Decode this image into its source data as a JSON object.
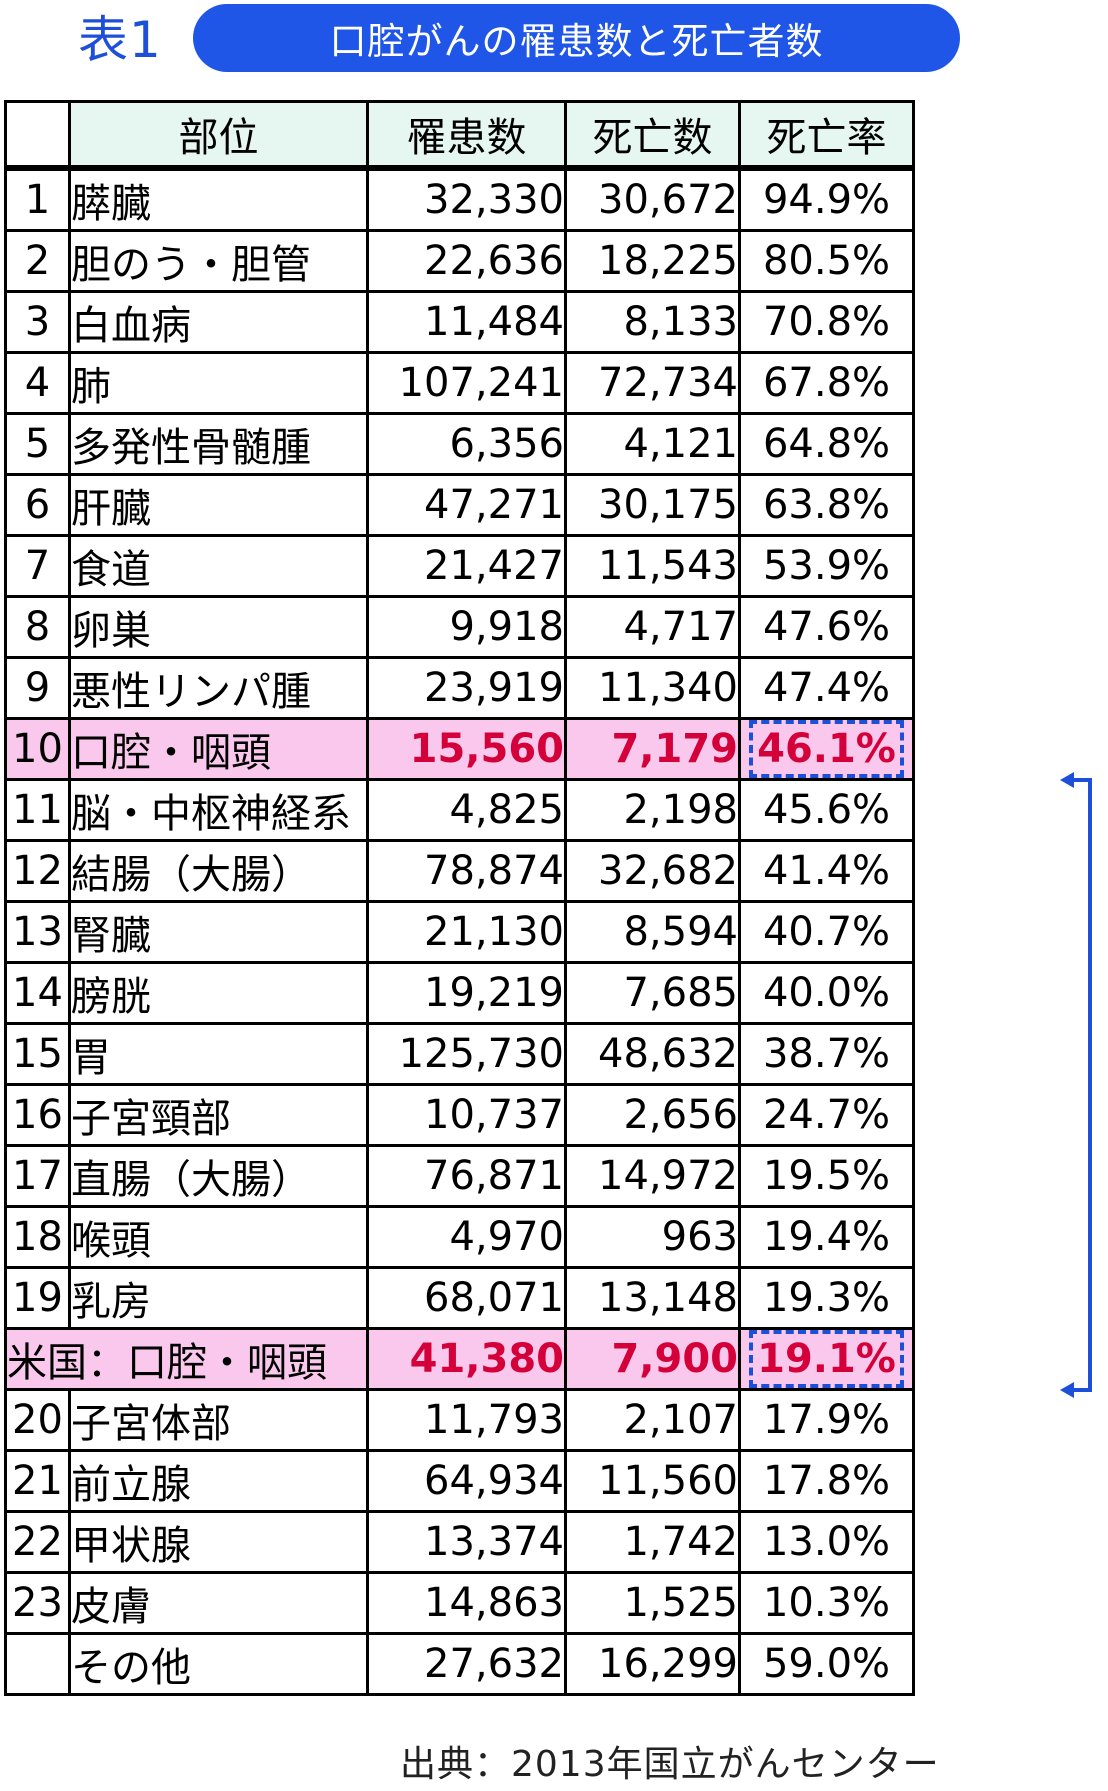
{
  "header": {
    "table_label": "表1",
    "title": "口腔がんの罹患数と死亡者数"
  },
  "columns": {
    "rank": "",
    "site": "部位",
    "incidence": "罹患数",
    "deaths": "死亡数",
    "mortality_rate": "死亡率"
  },
  "rows": [
    {
      "rank": "1",
      "site": "膵臓",
      "incidence": "32,330",
      "deaths": "30,672",
      "rate": "94.9%"
    },
    {
      "rank": "2",
      "site": "胆のう・胆管",
      "incidence": "22,636",
      "deaths": "18,225",
      "rate": "80.5%"
    },
    {
      "rank": "3",
      "site": "白血病",
      "incidence": "11,484",
      "deaths": "8,133",
      "rate": "70.8%"
    },
    {
      "rank": "4",
      "site": "肺",
      "incidence": "107,241",
      "deaths": "72,734",
      "rate": "67.8%"
    },
    {
      "rank": "5",
      "site": "多発性骨髄腫",
      "incidence": "6,356",
      "deaths": "4,121",
      "rate": "64.8%"
    },
    {
      "rank": "6",
      "site": "肝臓",
      "incidence": "47,271",
      "deaths": "30,175",
      "rate": "63.8%"
    },
    {
      "rank": "7",
      "site": "食道",
      "incidence": "21,427",
      "deaths": "11,543",
      "rate": "53.9%"
    },
    {
      "rank": "8",
      "site": "卵巣",
      "incidence": "9,918",
      "deaths": "4,717",
      "rate": "47.6%"
    },
    {
      "rank": "9",
      "site": "悪性リンパ腫",
      "incidence": "23,919",
      "deaths": "11,340",
      "rate": "47.4%"
    },
    {
      "rank": "10",
      "site": "口腔・咽頭",
      "incidence": "15,560",
      "deaths": "7,179",
      "rate": "46.1%",
      "highlight": true
    },
    {
      "rank": "11",
      "site": "脳・中枢神経系",
      "incidence": "4,825",
      "deaths": "2,198",
      "rate": "45.6%"
    },
    {
      "rank": "12",
      "site": "結腸（大腸）",
      "incidence": "78,874",
      "deaths": "32,682",
      "rate": "41.4%"
    },
    {
      "rank": "13",
      "site": "腎臓",
      "incidence": "21,130",
      "deaths": "8,594",
      "rate": "40.7%"
    },
    {
      "rank": "14",
      "site": "膀胱",
      "incidence": "19,219",
      "deaths": "7,685",
      "rate": "40.0%"
    },
    {
      "rank": "15",
      "site": "胃",
      "incidence": "125,730",
      "deaths": "48,632",
      "rate": "38.7%"
    },
    {
      "rank": "16",
      "site": "子宮頸部",
      "incidence": "10,737",
      "deaths": "2,656",
      "rate": "24.7%"
    },
    {
      "rank": "17",
      "site": "直腸（大腸）",
      "incidence": "76,871",
      "deaths": "14,972",
      "rate": "19.5%"
    },
    {
      "rank": "18",
      "site": "喉頭",
      "incidence": "4,970",
      "deaths": "963",
      "rate": "19.4%"
    },
    {
      "rank": "19",
      "site": "乳房",
      "incidence": "68,071",
      "deaths": "13,148",
      "rate": "19.3%"
    },
    {
      "rank": "",
      "site": "米国：口腔・咽頭",
      "incidence": "41,380",
      "deaths": "7,900",
      "rate": "19.1%",
      "highlight": true,
      "wide": true
    },
    {
      "rank": "20",
      "site": "子宮体部",
      "incidence": "11,793",
      "deaths": "2,107",
      "rate": "17.9%"
    },
    {
      "rank": "21",
      "site": "前立腺",
      "incidence": "64,934",
      "deaths": "11,560",
      "rate": "17.8%"
    },
    {
      "rank": "22",
      "site": "甲状腺",
      "incidence": "13,374",
      "deaths": "1,742",
      "rate": "13.0%"
    },
    {
      "rank": "23",
      "site": "皮膚",
      "incidence": "14,863",
      "deaths": "1,525",
      "rate": "10.3%"
    },
    {
      "rank": "",
      "site": "その他",
      "incidence": "27,632",
      "deaths": "16,299",
      "rate": "59.0%"
    }
  ],
  "source": "出典：2013年国立がんセンター",
  "colors": {
    "accent_blue": "#1f56e8",
    "header_bg": "#e6f6f1",
    "highlight_bg": "#f9c8ec",
    "highlight_text": "#d3003a"
  }
}
